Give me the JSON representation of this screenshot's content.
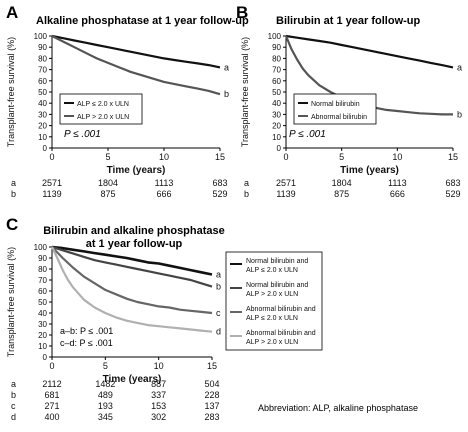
{
  "panels": {
    "A": {
      "letter": "A",
      "title": "Alkaline phosphatase at 1 year follow-up",
      "pvalue": "P ≤ .001"
    },
    "B": {
      "letter": "B",
      "title": "Bilirubin at 1 year follow-up",
      "pvalue": "P ≤ .001"
    },
    "C": {
      "letter": "C",
      "title_line1": "Bilirubin and alkaline phosphatase",
      "title_line2": "at 1 year follow-up",
      "pvalue_ab": "a–b: P ≤ .001",
      "pvalue_cd": "c–d: P ≤ .001"
    }
  },
  "abbreviation": "Abbreviation: ALP, alkaline phosphatase",
  "chart_data": [
    {
      "type": "line",
      "panel": "A",
      "title": "Alkaline phosphatase at 1 year follow-up",
      "xlabel": "Time (years)",
      "ylabel": "Transplant-free survival (%)",
      "xlim": [
        0,
        15
      ],
      "ylim": [
        0,
        100
      ],
      "xticks": [
        0,
        5,
        10,
        15
      ],
      "yticks": [
        0,
        10,
        20,
        30,
        40,
        50,
        60,
        70,
        80,
        90,
        100
      ],
      "series": [
        {
          "name": "ALP ≤ 2.0 x ULN",
          "end_label": "a",
          "color": "#111111",
          "x": [
            0,
            1,
            2,
            3,
            4,
            5,
            6,
            7,
            8,
            9,
            10,
            11,
            12,
            13,
            14,
            15
          ],
          "y": [
            100,
            98,
            96,
            94,
            92,
            90,
            88,
            86,
            84,
            82,
            80,
            78.5,
            77,
            75.5,
            74,
            72
          ]
        },
        {
          "name": "ALP > 2.0 x ULN",
          "end_label": "b",
          "color": "#555555",
          "x": [
            0,
            1,
            2,
            3,
            4,
            5,
            6,
            7,
            8,
            9,
            10,
            11,
            12,
            13,
            14,
            15
          ],
          "y": [
            100,
            95,
            90,
            85,
            80,
            76,
            72,
            68,
            65,
            62,
            59,
            57,
            55,
            53,
            51,
            48
          ]
        }
      ],
      "legend": "bottom-left",
      "at_risk": {
        "times": [
          0,
          5,
          10,
          15
        ],
        "rows": [
          {
            "label": "a",
            "values": [
              "2571",
              "1804",
              "1113",
              "683"
            ]
          },
          {
            "label": "b",
            "values": [
              "1139",
              "875",
              "666",
              "529"
            ]
          }
        ]
      }
    },
    {
      "type": "line",
      "panel": "B",
      "title": "Bilirubin at 1 year follow-up",
      "xlabel": "Time (years)",
      "ylabel": "Transplant-free survival (%)",
      "xlim": [
        0,
        15
      ],
      "ylim": [
        0,
        100
      ],
      "xticks": [
        0,
        5,
        10,
        15
      ],
      "yticks": [
        0,
        10,
        20,
        30,
        40,
        50,
        60,
        70,
        80,
        90,
        100
      ],
      "series": [
        {
          "name": "Normal bilirubin",
          "end_label": "a",
          "color": "#111111",
          "x": [
            0,
            1,
            2,
            3,
            4,
            5,
            6,
            7,
            8,
            9,
            10,
            11,
            12,
            13,
            14,
            15
          ],
          "y": [
            100,
            98.5,
            97,
            95.5,
            94,
            92,
            90,
            88,
            86,
            84,
            82,
            80,
            78,
            76,
            74,
            72
          ]
        },
        {
          "name": "Abnormal bilirubin",
          "end_label": "b",
          "color": "#555555",
          "x": [
            0,
            0.5,
            1,
            1.5,
            2,
            3,
            4,
            5,
            6,
            7,
            8,
            9,
            10,
            11,
            12,
            13,
            14,
            15
          ],
          "y": [
            100,
            88,
            79,
            71,
            65,
            56,
            50,
            45,
            41,
            38,
            36,
            34,
            33,
            32,
            31,
            30.5,
            30,
            30
          ]
        }
      ],
      "legend": "bottom-left",
      "at_risk": {
        "times": [
          0,
          5,
          10,
          15
        ],
        "rows": [
          {
            "label": "a",
            "values": [
              "2571",
              "1804",
              "1113",
              "683"
            ]
          },
          {
            "label": "b",
            "values": [
              "1139",
              "875",
              "666",
              "529"
            ]
          }
        ]
      }
    },
    {
      "type": "line",
      "panel": "C",
      "title": "Bilirubin and alkaline phosphatase at 1 year follow-up",
      "xlabel": "Time (years)",
      "ylabel": "Transplant-free survival (%)",
      "xlim": [
        0,
        15
      ],
      "ylim": [
        0,
        100
      ],
      "xticks": [
        0,
        5,
        10,
        15
      ],
      "yticks": [
        0,
        10,
        20,
        30,
        40,
        50,
        60,
        70,
        80,
        90,
        100
      ],
      "series": [
        {
          "name": "Normal bilirubin and ALP ≤ 2.0 x ULN",
          "end_label": "a",
          "color": "#111111",
          "x": [
            0,
            1,
            2,
            3,
            4,
            5,
            6,
            7,
            8,
            9,
            10,
            11,
            12,
            13,
            14,
            15
          ],
          "y": [
            100,
            99,
            97.5,
            96,
            94.5,
            93,
            91.5,
            90,
            88,
            86,
            85,
            83,
            81,
            79,
            77,
            75
          ]
        },
        {
          "name": "Normal bilirubin and ALP > 2.0 x ULN",
          "end_label": "b",
          "color": "#444444",
          "x": [
            0,
            1,
            2,
            3,
            4,
            5,
            6,
            7,
            8,
            9,
            10,
            11,
            12,
            13,
            14,
            15
          ],
          "y": [
            100,
            97,
            94,
            91,
            88,
            86,
            84,
            82,
            80,
            78,
            76,
            74,
            72,
            70,
            67,
            64
          ]
        },
        {
          "name": "Abnormal bilirubin and ALP ≤ 2.0 x ULN",
          "end_label": "c",
          "color": "#666666",
          "x": [
            0,
            1,
            2,
            3,
            4,
            5,
            6,
            7,
            8,
            9,
            10,
            11,
            12,
            13,
            14,
            15
          ],
          "y": [
            100,
            90,
            81,
            73,
            67,
            61,
            57,
            53,
            50,
            48,
            46,
            45,
            43,
            42,
            41,
            40
          ]
        },
        {
          "name": "Abnormal bilirubin and ALP > 2.0 x ULN",
          "end_label": "d",
          "color": "#b0b0b0",
          "x": [
            0,
            0.5,
            1,
            1.5,
            2,
            3,
            4,
            5,
            6,
            7,
            8,
            9,
            10,
            11,
            12,
            13,
            14,
            15
          ],
          "y": [
            100,
            90,
            79,
            70,
            63,
            52,
            45,
            40,
            36,
            33,
            31,
            29,
            28,
            27,
            26,
            25,
            24,
            23
          ]
        }
      ],
      "legend": "right",
      "at_risk": {
        "times": [
          0,
          5,
          10,
          15
        ],
        "rows": [
          {
            "label": "a",
            "values": [
              "2112",
              "1482",
              "887",
              "504"
            ]
          },
          {
            "label": "b",
            "values": [
              "681",
              "489",
              "337",
              "228"
            ]
          },
          {
            "label": "c",
            "values": [
              "271",
              "193",
              "153",
              "137"
            ]
          },
          {
            "label": "d",
            "values": [
              "400",
              "345",
              "302",
              "283"
            ]
          }
        ]
      }
    }
  ]
}
